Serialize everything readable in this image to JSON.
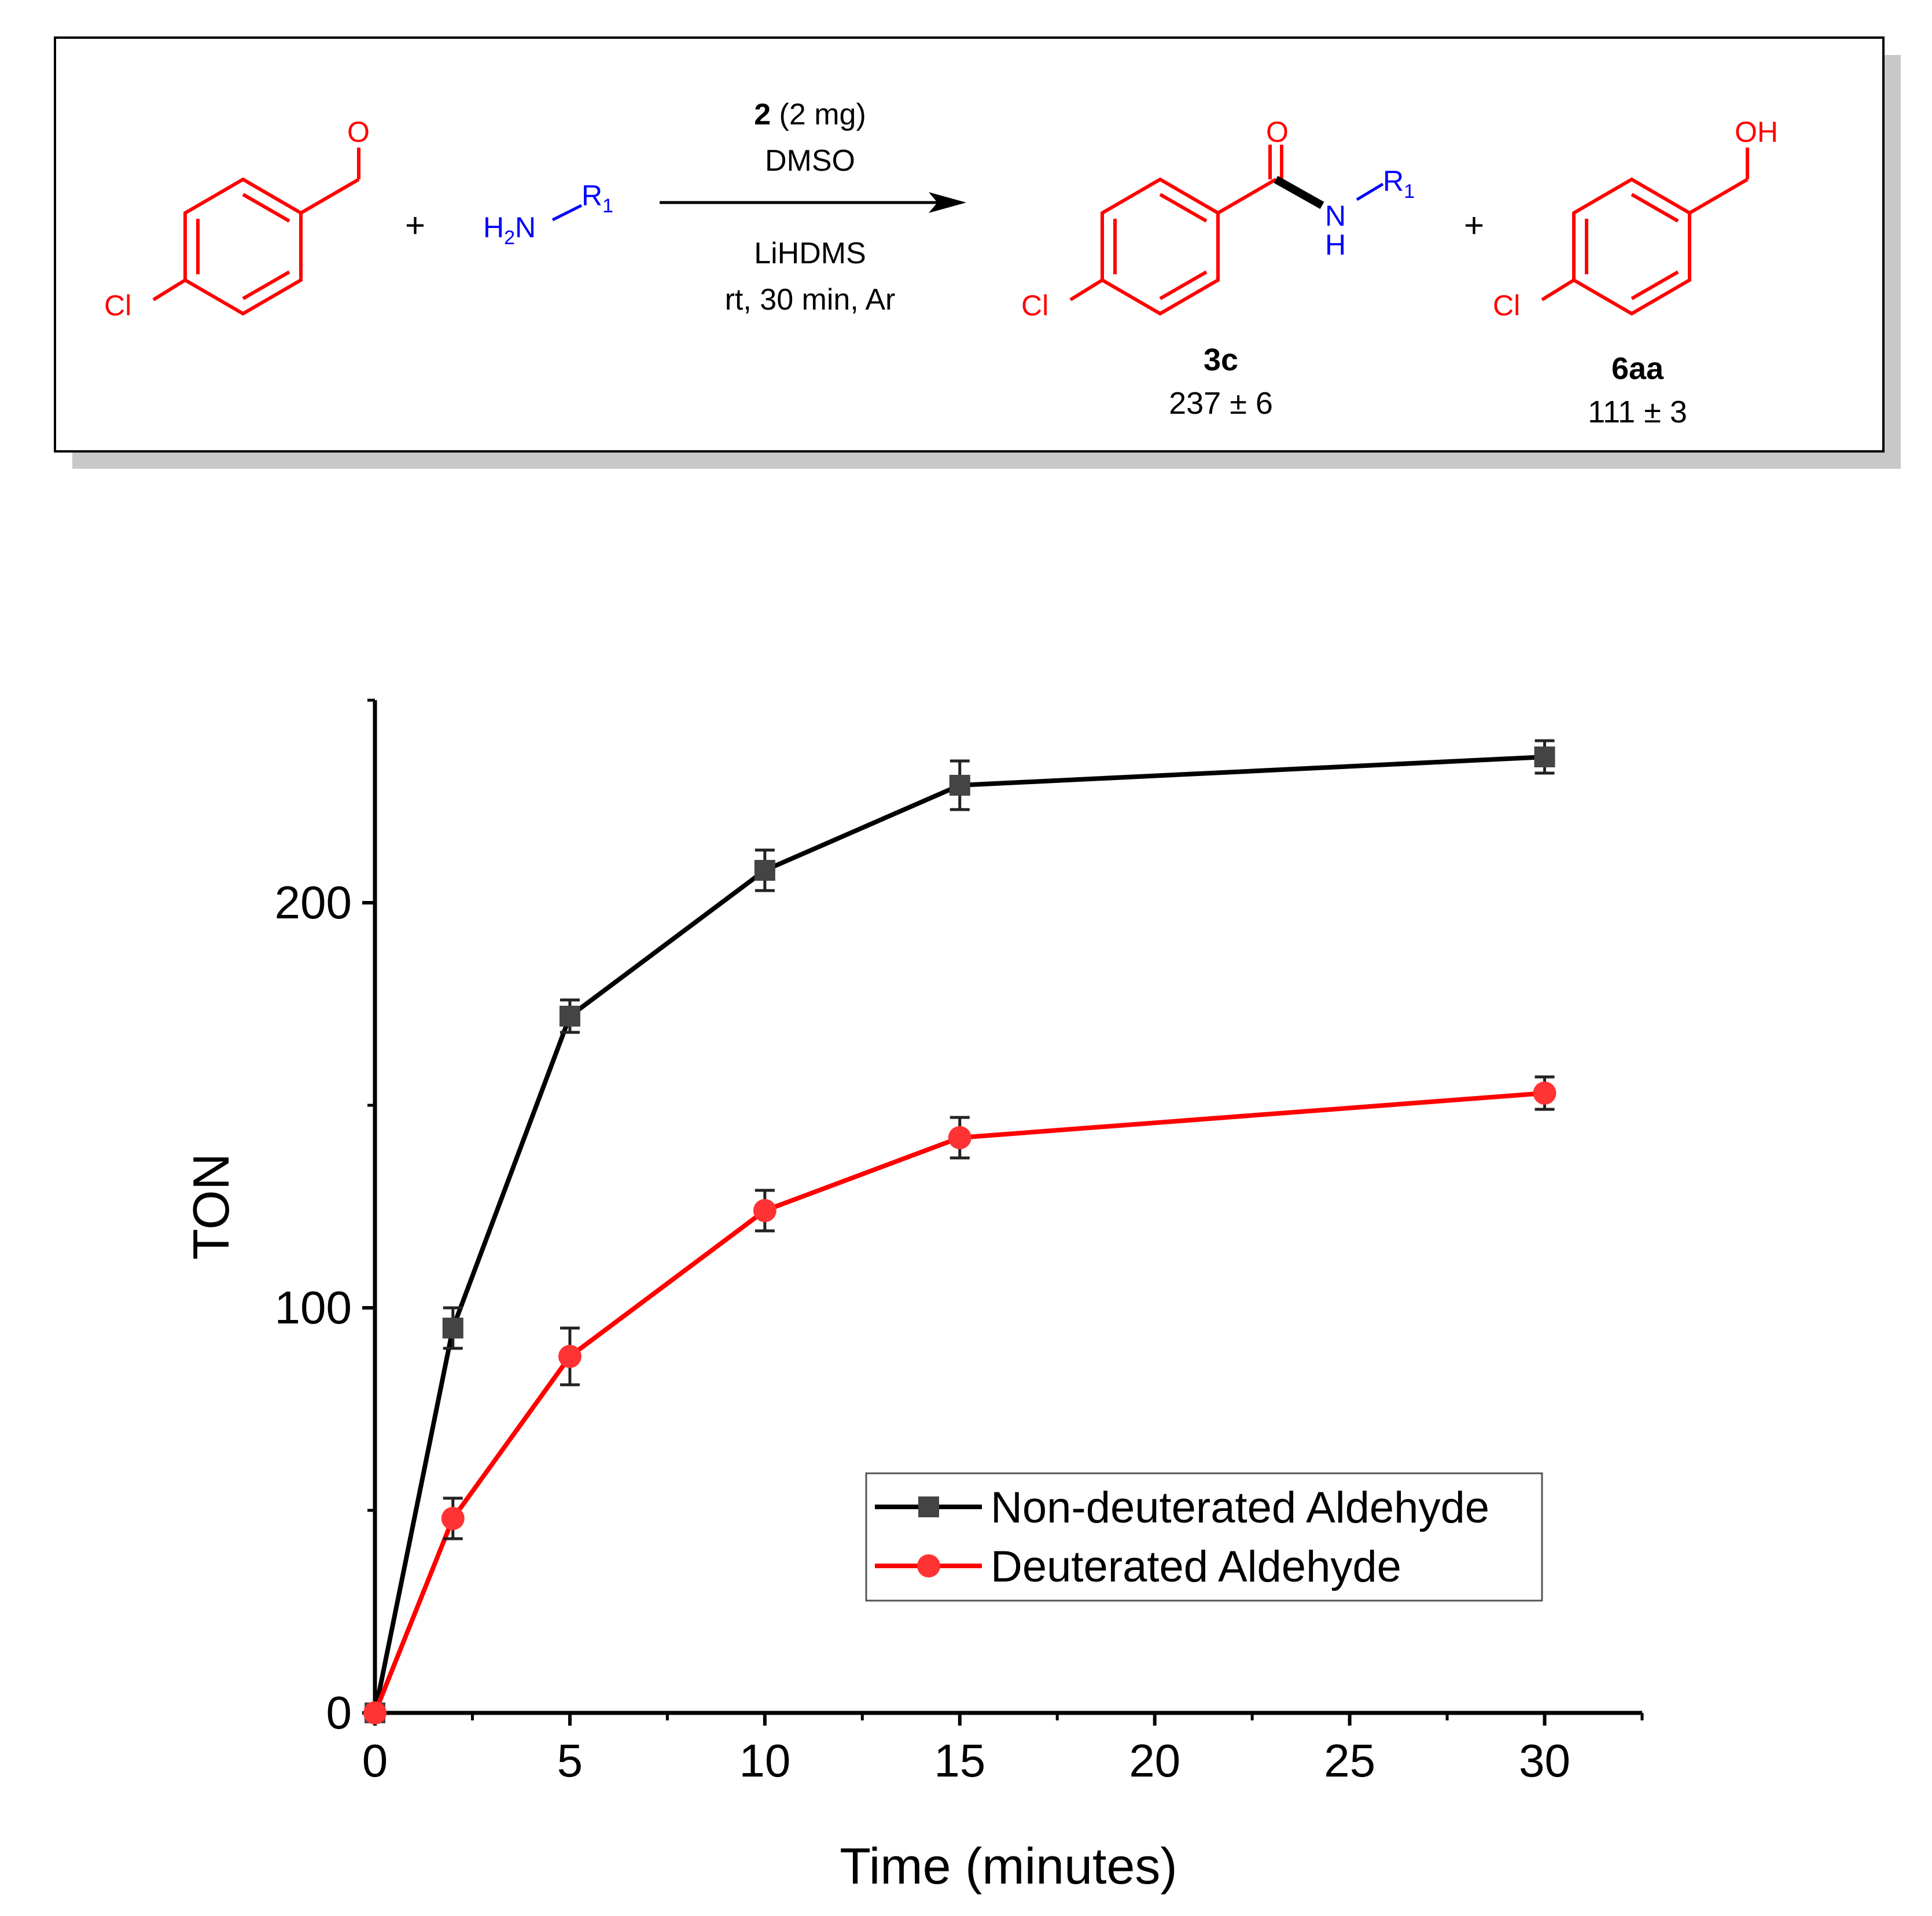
{
  "scheme": {
    "reactant1_atoms": {
      "oxygen": "O",
      "chlorine": "Cl"
    },
    "plus1": "+",
    "amine": {
      "h2n": "H",
      "sub2": "2",
      "n": "N",
      "r": "R",
      "sub1": "1"
    },
    "conditions": {
      "catalyst_bold": "2",
      "catalyst_amount": " (2 mg)",
      "solvent": "DMSO",
      "base": "LiHDMS",
      "details": "rt, 30 min, Ar"
    },
    "product1": {
      "oxygen": "O",
      "n": "N",
      "h": "H",
      "r": "R",
      "sub1": "1",
      "chlorine": "Cl",
      "label": "3c",
      "value": "237 ± 6"
    },
    "plus2": "+",
    "product2": {
      "oh": "OH",
      "chlorine": "Cl",
      "label": "6aa",
      "value": "111 ± 3"
    },
    "colors": {
      "substrate": "#ff0000",
      "amine": "#0000ff",
      "bond": "#000000"
    }
  },
  "chart_data": {
    "type": "line",
    "xlabel": "Time (minutes)",
    "ylabel": "TON",
    "xlim": [
      0,
      32.5
    ],
    "ylim": [
      0,
      250
    ],
    "xticks": [
      0,
      5,
      10,
      15,
      20,
      25,
      30
    ],
    "yticks": [
      0,
      100,
      200
    ],
    "grid": false,
    "legend_position": "bottom-right",
    "series": [
      {
        "name": "Non-deuterated Aldehyde",
        "color": "#000000",
        "marker_color": "#444444",
        "marker": "square",
        "x": [
          0,
          2,
          5,
          10,
          15,
          30
        ],
        "y": [
          0,
          95,
          172,
          208,
          229,
          236
        ],
        "error": [
          0,
          5,
          4,
          5,
          6,
          4
        ]
      },
      {
        "name": "Deuterated Aldehyde",
        "color": "#ff0000",
        "marker_color": "#ff3333",
        "marker": "circle",
        "x": [
          0,
          2,
          5,
          10,
          15,
          30
        ],
        "y": [
          0,
          48,
          88,
          124,
          142,
          153
        ],
        "error": [
          0,
          5,
          7,
          5,
          5,
          4
        ]
      }
    ]
  }
}
